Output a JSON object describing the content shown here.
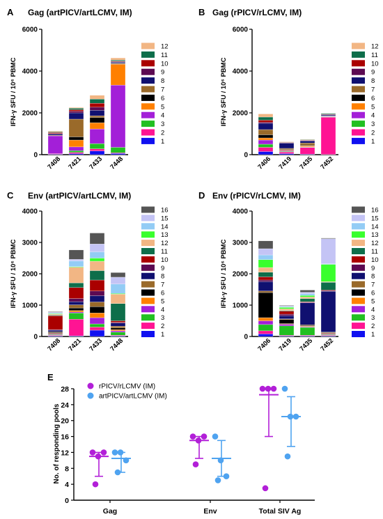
{
  "panels": [
    {
      "letter": "A",
      "title": "Gag (artPICV/artLCMV, IM)"
    },
    {
      "letter": "B",
      "title": "Gag (rPICV/rLCMV, IM)"
    },
    {
      "letter": "C",
      "title": "Env (artPICV/artLCMV, IM)"
    },
    {
      "letter": "D",
      "title": "Env (rPICV/rLCMV, IM)"
    },
    {
      "letter": "E",
      "title": ""
    }
  ],
  "ylabel_sfu": "IFN-γ SFU / 10⁶ PBMC",
  "legend_colors": {
    "1": "#1010f0",
    "2": "#ff1493",
    "3": "#22c022",
    "4": "#a31fd8",
    "5": "#ff8000",
    "6": "#000000",
    "7": "#9a6a2a",
    "8": "#101070",
    "9": "#5c0a52",
    "10": "#aa0000",
    "11": "#0e6e4a",
    "12": "#f2b684",
    "13": "#39ff2d",
    "14": "#93ccf5",
    "15": "#c4c4f5",
    "16": "#555555"
  },
  "chart_data": [
    {
      "type": "bar",
      "stacked": true,
      "categories": [
        "7408",
        "7421",
        "7433",
        "7448"
      ],
      "ylim": [
        0,
        6000
      ],
      "yticks": [
        "0",
        "2000",
        "4000",
        "6000"
      ],
      "legend": [
        "12",
        "11",
        "10",
        "9",
        "8",
        "7",
        "6",
        "5",
        "4",
        "3",
        "2",
        "1"
      ],
      "series": [
        {
          "name": "1",
          "values": [
            20,
            50,
            180,
            60
          ]
        },
        {
          "name": "2",
          "values": [
            30,
            60,
            100,
            30
          ]
        },
        {
          "name": "3",
          "values": [
            0,
            80,
            250,
            260
          ]
        },
        {
          "name": "4",
          "values": [
            850,
            180,
            700,
            2980
          ]
        },
        {
          "name": "5",
          "values": [
            0,
            330,
            300,
            1000
          ]
        },
        {
          "name": "6",
          "values": [
            0,
            150,
            250,
            20
          ]
        },
        {
          "name": "7",
          "values": [
            30,
            850,
            80,
            30
          ]
        },
        {
          "name": "8",
          "values": [
            60,
            300,
            260,
            50
          ]
        },
        {
          "name": "9",
          "values": [
            20,
            80,
            150,
            20
          ]
        },
        {
          "name": "10",
          "values": [
            50,
            70,
            190,
            30
          ]
        },
        {
          "name": "11",
          "values": [
            30,
            70,
            200,
            50
          ]
        },
        {
          "name": "12",
          "values": [
            40,
            40,
            180,
            100
          ]
        }
      ]
    },
    {
      "type": "bar",
      "stacked": true,
      "categories": [
        "7406",
        "7419",
        "7435",
        "7452"
      ],
      "ylim": [
        0,
        6000
      ],
      "yticks": [
        "0",
        "2000",
        "4000",
        "6000"
      ],
      "legend": [
        "12",
        "11",
        "10",
        "9",
        "8",
        "7",
        "6",
        "5",
        "4",
        "3",
        "2",
        "1"
      ],
      "series": [
        {
          "name": "1",
          "values": [
            150,
            50,
            20,
            10
          ]
        },
        {
          "name": "2",
          "values": [
            200,
            80,
            320,
            1780
          ]
        },
        {
          "name": "3",
          "values": [
            150,
            30,
            20,
            20
          ]
        },
        {
          "name": "4",
          "values": [
            200,
            30,
            20,
            10
          ]
        },
        {
          "name": "5",
          "values": [
            100,
            30,
            50,
            10
          ]
        },
        {
          "name": "6",
          "values": [
            150,
            30,
            30,
            10
          ]
        },
        {
          "name": "7",
          "values": [
            250,
            50,
            100,
            10
          ]
        },
        {
          "name": "8",
          "values": [
            300,
            250,
            100,
            50
          ]
        },
        {
          "name": "9",
          "values": [
            50,
            20,
            20,
            20
          ]
        },
        {
          "name": "10",
          "values": [
            100,
            20,
            20,
            20
          ]
        },
        {
          "name": "11",
          "values": [
            150,
            20,
            20,
            40
          ]
        },
        {
          "name": "12",
          "values": [
            150,
            20,
            20,
            10
          ]
        }
      ]
    },
    {
      "type": "bar",
      "stacked": true,
      "categories": [
        "7408",
        "7421",
        "7433",
        "7448"
      ],
      "ylim": [
        0,
        4000
      ],
      "yticks": [
        "0",
        "1000",
        "2000",
        "3000",
        "4000"
      ],
      "legend": [
        "16",
        "15",
        "14",
        "13",
        "12",
        "11",
        "10",
        "9",
        "8",
        "7",
        "6",
        "5",
        "4",
        "3",
        "2",
        "1"
      ],
      "series": [
        {
          "name": "1",
          "values": [
            20,
            20,
            200,
            20
          ]
        },
        {
          "name": "2",
          "values": [
            20,
            530,
            100,
            20
          ]
        },
        {
          "name": "3",
          "values": [
            20,
            200,
            100,
            100
          ]
        },
        {
          "name": "4",
          "values": [
            20,
            30,
            200,
            40
          ]
        },
        {
          "name": "5",
          "values": [
            20,
            50,
            150,
            40
          ]
        },
        {
          "name": "6",
          "values": [
            30,
            80,
            200,
            50
          ]
        },
        {
          "name": "7",
          "values": [
            20,
            100,
            150,
            60
          ]
        },
        {
          "name": "8",
          "values": [
            50,
            100,
            200,
            100
          ]
        },
        {
          "name": "9",
          "values": [
            20,
            100,
            150,
            20
          ]
        },
        {
          "name": "10",
          "values": [
            440,
            350,
            350,
            50
          ]
        },
        {
          "name": "11",
          "values": [
            20,
            150,
            300,
            550
          ]
        },
        {
          "name": "12",
          "values": [
            30,
            500,
            300,
            300
          ]
        },
        {
          "name": "13",
          "values": [
            20,
            20,
            100,
            20
          ]
        },
        {
          "name": "14",
          "values": [
            20,
            180,
            200,
            300
          ]
        },
        {
          "name": "15",
          "values": [
            20,
            50,
            250,
            220
          ]
        },
        {
          "name": "16",
          "values": [
            20,
            300,
            350,
            150
          ]
        }
      ]
    },
    {
      "type": "bar",
      "stacked": true,
      "categories": [
        "7406",
        "7419",
        "7435",
        "7452"
      ],
      "ylim": [
        0,
        4000
      ],
      "yticks": [
        "0",
        "1000",
        "2000",
        "3000",
        "4000"
      ],
      "legend": [
        "16",
        "15",
        "14",
        "13",
        "12",
        "11",
        "10",
        "9",
        "8",
        "7",
        "6",
        "5",
        "4",
        "3",
        "2",
        "1"
      ],
      "series": [
        {
          "name": "1",
          "values": [
            80,
            20,
            20,
            20
          ]
        },
        {
          "name": "2",
          "values": [
            100,
            20,
            20,
            20
          ]
        },
        {
          "name": "3",
          "values": [
            200,
            300,
            250,
            20
          ]
        },
        {
          "name": "4",
          "values": [
            120,
            50,
            20,
            20
          ]
        },
        {
          "name": "5",
          "values": [
            100,
            20,
            20,
            20
          ]
        },
        {
          "name": "6",
          "values": [
            800,
            130,
            20,
            20
          ]
        },
        {
          "name": "7",
          "values": [
            50,
            20,
            20,
            20
          ]
        },
        {
          "name": "8",
          "values": [
            300,
            100,
            700,
            1300
          ]
        },
        {
          "name": "9",
          "values": [
            50,
            50,
            20,
            20
          ]
        },
        {
          "name": "10",
          "values": [
            100,
            100,
            20,
            20
          ]
        },
        {
          "name": "11",
          "values": [
            150,
            20,
            100,
            250
          ]
        },
        {
          "name": "12",
          "values": [
            150,
            50,
            50,
            20
          ]
        },
        {
          "name": "13",
          "values": [
            250,
            50,
            50,
            550
          ]
        },
        {
          "name": "14",
          "values": [
            150,
            20,
            50,
            20
          ]
        },
        {
          "name": "15",
          "values": [
            200,
            20,
            50,
            800
          ]
        },
        {
          "name": "16",
          "values": [
            250,
            20,
            70,
            20
          ]
        }
      ]
    },
    {
      "type": "scatter",
      "ylabel": "No. of responding pools",
      "categories": [
        "Gag",
        "Env",
        "Total SIV Ag"
      ],
      "ylim": [
        0,
        28
      ],
      "yticks": [
        "0",
        "4",
        "8",
        "12",
        "16",
        "20",
        "24",
        "28"
      ],
      "series": [
        {
          "name": "rPICV/rLCMV (IM)",
          "color": "#b21fd8",
          "points": [
            [
              12,
              11,
              12,
              4
            ],
            [
              16,
              15,
              16,
              9
            ],
            [
              28,
              28,
              28,
              3
            ]
          ],
          "mean": [
            11,
            15,
            26.5
          ],
          "err_low": [
            6,
            10.5,
            16
          ],
          "err_high": [
            12,
            16,
            28
          ]
        },
        {
          "name": "artPICV/artLCMV (IM)",
          "color": "#4fa3f0",
          "points": [
            [
              12,
              12,
              10,
              7
            ],
            [
              16,
              10,
              6,
              5
            ],
            [
              28,
              21,
              21,
              11
            ]
          ],
          "mean": [
            10.5,
            10.5,
            21
          ],
          "err_low": [
            7,
            6,
            13.5
          ],
          "err_high": [
            12,
            15,
            26
          ]
        }
      ]
    }
  ]
}
